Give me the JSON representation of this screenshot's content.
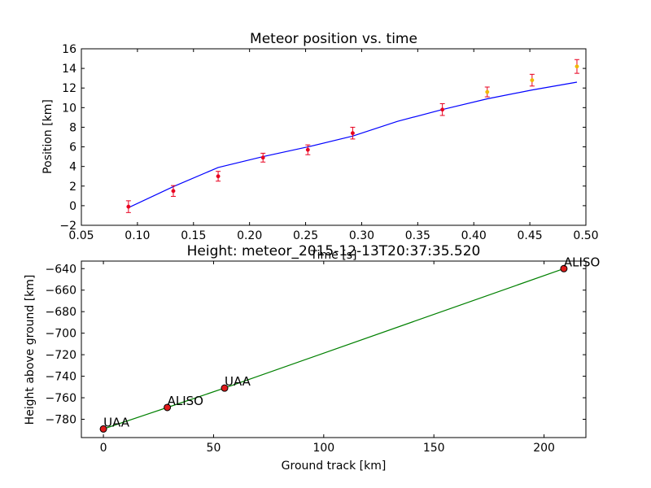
{
  "chart_data": [
    {
      "type": "scatter",
      "title": "Meteor position vs. time",
      "xlabel": "Time [s]",
      "ylabel": "Position [km]",
      "xlim": [
        0.05,
        0.5
      ],
      "ylim": [
        -2,
        16
      ],
      "xticks": [
        0.05,
        0.1,
        0.15,
        0.2,
        0.25,
        0.3,
        0.35,
        0.4,
        0.45,
        0.5
      ],
      "xtick_labels": [
        "0.05",
        "0.10",
        "0.15",
        "0.20",
        "0.25",
        "0.30",
        "0.35",
        "0.40",
        "0.45",
        "0.50"
      ],
      "yticks": [
        -2,
        0,
        2,
        4,
        6,
        8,
        10,
        12,
        14,
        16
      ],
      "ytick_labels": [
        "−2",
        "0",
        "2",
        "4",
        "6",
        "8",
        "10",
        "12",
        "14",
        "16"
      ],
      "grid": false,
      "points": [
        {
          "x": 0.092,
          "y": -0.1,
          "err": 0.6,
          "color": "#e8001f"
        },
        {
          "x": 0.132,
          "y": 1.5,
          "err": 0.55,
          "color": "#e8001f"
        },
        {
          "x": 0.172,
          "y": 3.0,
          "err": 0.5,
          "color": "#e8001f"
        },
        {
          "x": 0.212,
          "y": 4.9,
          "err": 0.45,
          "color": "#e8001f"
        },
        {
          "x": 0.252,
          "y": 5.7,
          "err": 0.5,
          "color": "#e8001f"
        },
        {
          "x": 0.292,
          "y": 7.4,
          "err": 0.6,
          "color": "#e8001f"
        },
        {
          "x": 0.372,
          "y": 9.8,
          "err": 0.6,
          "color": "#e8001f"
        },
        {
          "x": 0.412,
          "y": 11.6,
          "err": 0.5,
          "color": "#f0b800"
        },
        {
          "x": 0.452,
          "y": 12.8,
          "err": 0.6,
          "color": "#f0b800"
        },
        {
          "x": 0.492,
          "y": 14.2,
          "err": 0.7,
          "color": "#f0b800"
        }
      ],
      "errorbar_color": "#e8001f",
      "fit_line": {
        "color": "#0000ff",
        "x": [
          0.092,
          0.132,
          0.172,
          0.212,
          0.252,
          0.292,
          0.332,
          0.372,
          0.412,
          0.452,
          0.492
        ],
        "y": [
          -0.2,
          1.95,
          3.9,
          5.0,
          6.0,
          7.1,
          8.6,
          9.8,
          10.9,
          11.8,
          12.6
        ]
      }
    },
    {
      "type": "line",
      "title": "Height: meteor_2015-12-13T20:37:35.520",
      "xlabel": "Ground track [km]",
      "ylabel": "Height above ground [km]",
      "xlim": [
        -10,
        219
      ],
      "ylim": [
        -797,
        -633
      ],
      "xticks": [
        0,
        50,
        100,
        150,
        200
      ],
      "xtick_labels": [
        "0",
        "50",
        "100",
        "150",
        "200"
      ],
      "yticks": [
        -780,
        -760,
        -740,
        -720,
        -700,
        -680,
        -660,
        -640
      ],
      "ytick_labels": [
        "−780",
        "−760",
        "−740",
        "−720",
        "−700",
        "−680",
        "−660",
        "−640"
      ],
      "grid": false,
      "line_color": "#008000",
      "marker_color": "#e01b1b",
      "points": [
        {
          "x": 0,
          "y": -789,
          "label": "UAA"
        },
        {
          "x": 29,
          "y": -769,
          "label": "ALISO"
        },
        {
          "x": 55,
          "y": -751,
          "label": "UAA"
        },
        {
          "x": 209,
          "y": -640,
          "label": "ALISO"
        }
      ]
    }
  ]
}
